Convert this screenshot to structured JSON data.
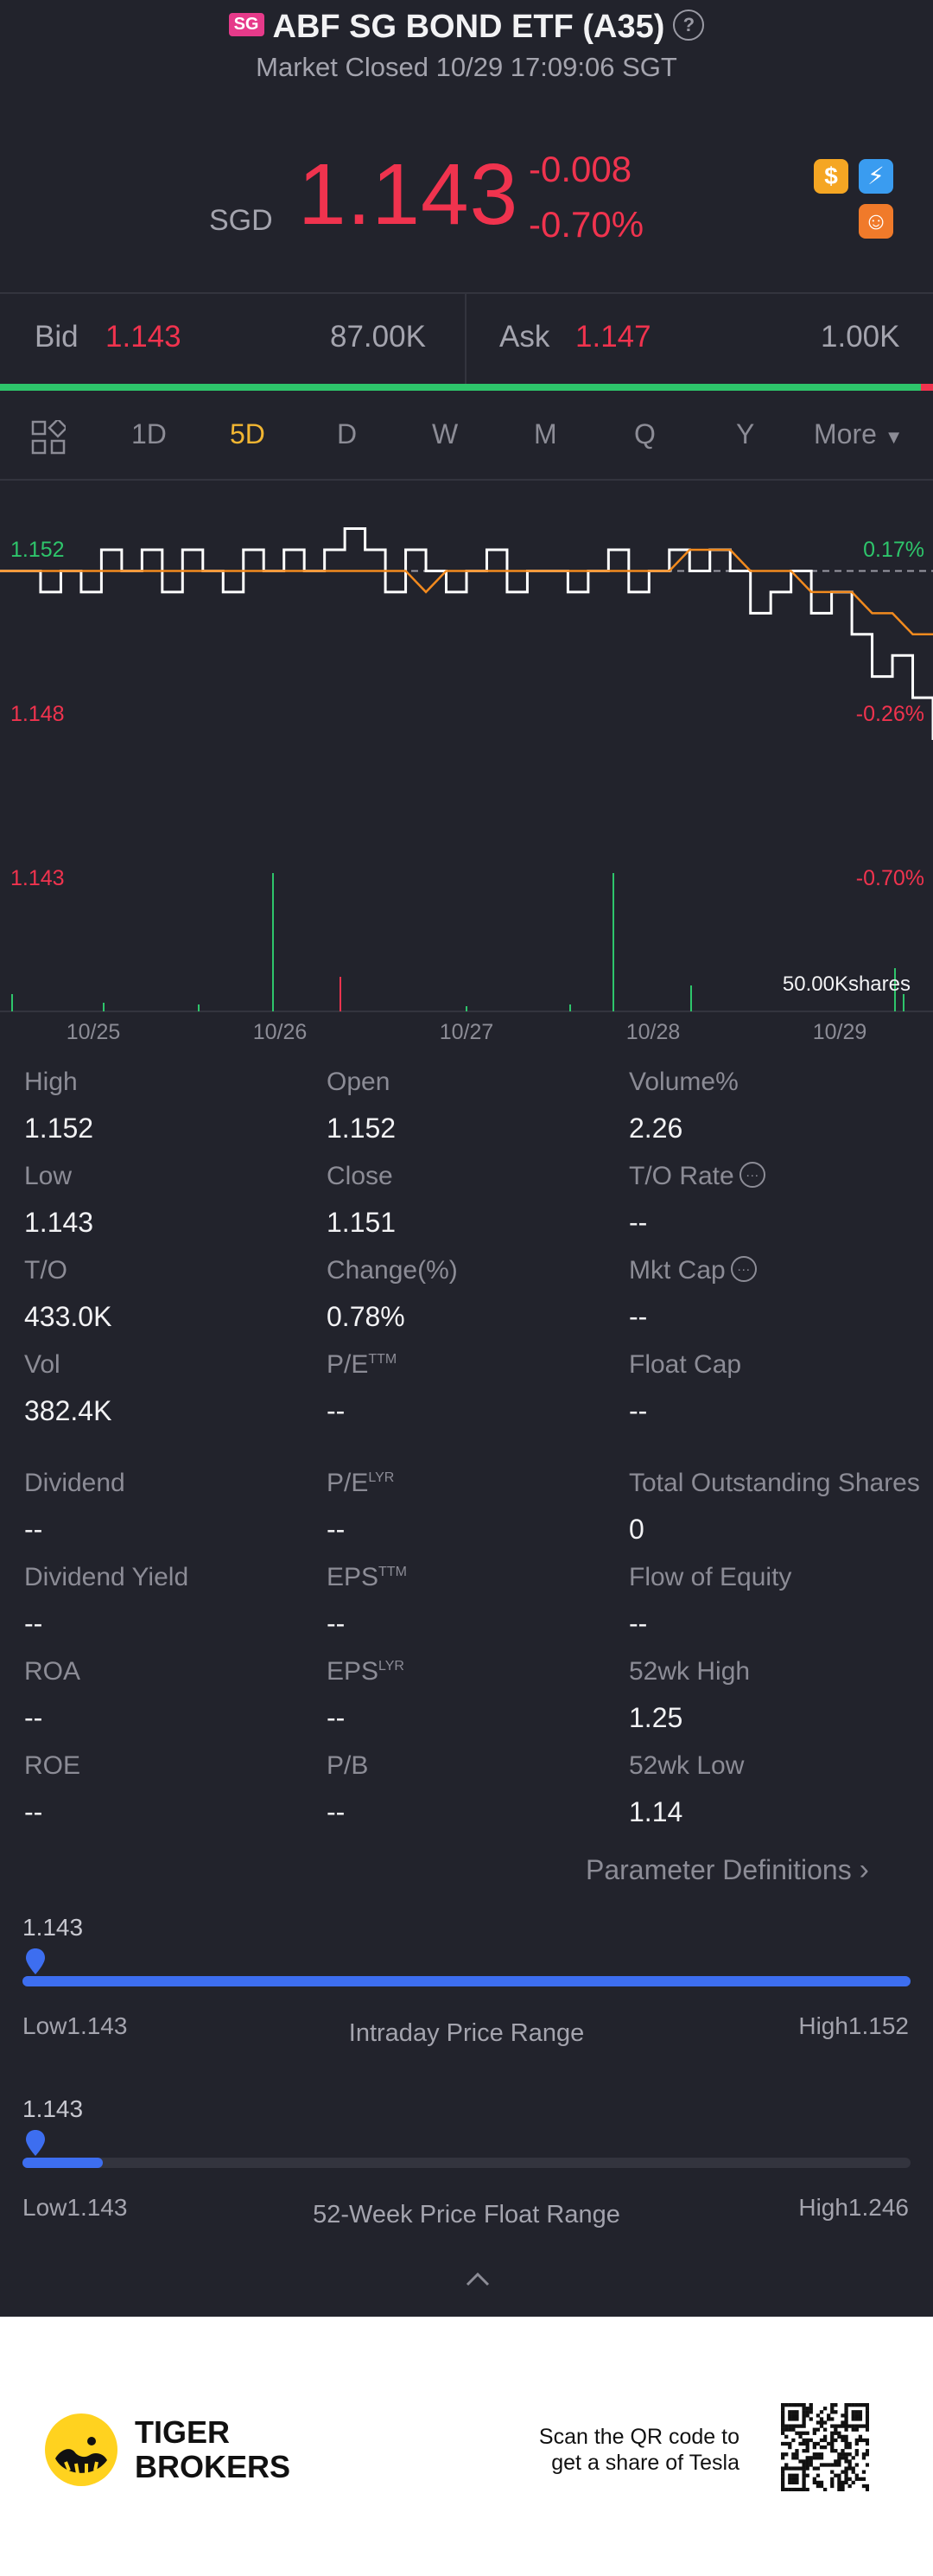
{
  "header": {
    "badge": "SG",
    "title": "ABF SG BOND ETF (A35)",
    "status": "Market Closed 10/29 17:09:06 SGT"
  },
  "quote": {
    "currency": "SGD",
    "price": "1.143",
    "change": "-0.008",
    "change_pct": "-0.70%"
  },
  "icons": [
    "dollar-icon",
    "lightning-icon",
    "orange-chat-icon"
  ],
  "bidask": {
    "bid_label": "Bid",
    "bid_price": "1.143",
    "bid_size": "87.00K",
    "ask_label": "Ask",
    "ask_price": "1.147",
    "ask_size": "1.00K"
  },
  "tabs": [
    {
      "label": "1D"
    },
    {
      "label": "5D"
    },
    {
      "label": "D"
    },
    {
      "label": "W"
    },
    {
      "label": "M"
    },
    {
      "label": "Q"
    },
    {
      "label": "Y"
    },
    {
      "label": "More"
    }
  ],
  "active_tab": "5D",
  "chart_data": {
    "type": "line",
    "y_left_ticks": [
      "1.152",
      "1.148",
      "1.143"
    ],
    "y_right_ticks": [
      "0.17%",
      "-0.26%",
      "-0.70%"
    ],
    "x_ticks": [
      "10/25",
      "10/26",
      "10/27",
      "10/28",
      "10/29"
    ],
    "volume_label": "50.00Kshares",
    "ylim": [
      1.143,
      1.152
    ],
    "reference_price": 1.151,
    "series": [
      {
        "values": [
          1.151,
          1.151,
          1.15,
          1.151,
          1.15,
          1.152,
          1.151,
          1.152,
          1.15,
          1.152,
          1.151,
          1.15,
          1.152,
          1.151,
          1.152,
          1.151,
          1.152,
          1.153,
          1.152,
          1.15,
          1.152,
          1.151,
          1.15,
          1.151,
          1.152,
          1.15,
          1.151,
          1.151,
          1.15,
          1.151,
          1.152,
          1.15,
          1.151,
          1.152,
          1.151,
          1.152,
          1.151,
          1.149,
          1.15,
          1.151,
          1.149,
          1.15,
          1.148,
          1.146,
          1.147,
          1.145,
          1.143
        ]
      },
      {
        "values": [
          1.151,
          1.151,
          1.151,
          1.151,
          1.151,
          1.151,
          1.151,
          1.151,
          1.151,
          1.151,
          1.151,
          1.151,
          1.151,
          1.151,
          1.151,
          1.151,
          1.151,
          1.151,
          1.151,
          1.151,
          1.151,
          1.15,
          1.151,
          1.151,
          1.151,
          1.151,
          1.151,
          1.151,
          1.151,
          1.151,
          1.151,
          1.151,
          1.151,
          1.151,
          1.152,
          1.152,
          1.152,
          1.151,
          1.151,
          1.151,
          1.15,
          1.15,
          1.15,
          1.149,
          1.149,
          1.148,
          1.148
        ]
      }
    ]
  },
  "stats": {
    "col1": [
      {
        "label": "High",
        "value": "1.152"
      },
      {
        "label": "Low",
        "value": "1.143"
      },
      {
        "label": "T/O",
        "value": "433.0K"
      },
      {
        "label": "Vol",
        "value": "382.4K"
      },
      {
        "label": "Dividend",
        "value": "--"
      },
      {
        "label": "Dividend Yield",
        "value": "--"
      },
      {
        "label": "ROA",
        "value": "--"
      },
      {
        "label": "ROE",
        "value": "--"
      }
    ],
    "col2": [
      {
        "label": "Open",
        "value": "1.152"
      },
      {
        "label": "Close",
        "value": "1.151"
      },
      {
        "label": "Change(%)",
        "value": "0.78%"
      },
      {
        "label": "P/E",
        "sup": "TTM",
        "value": "--"
      },
      {
        "label": "P/E",
        "sup": "LYR",
        "value": "--"
      },
      {
        "label": "EPS",
        "sup": "TTM",
        "value": "--"
      },
      {
        "label": "EPS",
        "sup": "LYR",
        "value": "--"
      },
      {
        "label": "P/B",
        "value": "--"
      }
    ],
    "col3": [
      {
        "label": "Volume%",
        "value": "2.26"
      },
      {
        "label": "T/O Rate",
        "value": "--"
      },
      {
        "label": "Mkt Cap",
        "value": "--"
      },
      {
        "label": "Float Cap",
        "value": "--"
      },
      {
        "label": "Total Outstanding Shares",
        "value": "0"
      },
      {
        "label": "Flow of Equity",
        "value": "--"
      },
      {
        "label": "52wk High",
        "value": "1.25"
      },
      {
        "label": "52wk Low",
        "value": "1.14"
      }
    ]
  },
  "param_link": "Parameter Definitions",
  "intraday": {
    "current": "1.143",
    "low": "Low1.143",
    "title": "Intraday Price Range",
    "high": "High1.152",
    "fill": 1.0,
    "marker": 0.0
  },
  "week52": {
    "current": "1.143",
    "low": "Low1.143",
    "title": "52-Week Price Float Range",
    "high": "High1.246",
    "fill": 0.09,
    "marker": 0.0
  },
  "footer": {
    "brand_line1": "TIGER",
    "brand_line2": "BROKERS",
    "qr_text_line1": "Scan the QR code to",
    "qr_text_line2": "get a share of Tesla"
  },
  "colors": {
    "red": "#f0334e",
    "green": "#2ec56b",
    "accent": "#f2b632",
    "blue": "#3d6ef0",
    "bg": "#22232c"
  }
}
